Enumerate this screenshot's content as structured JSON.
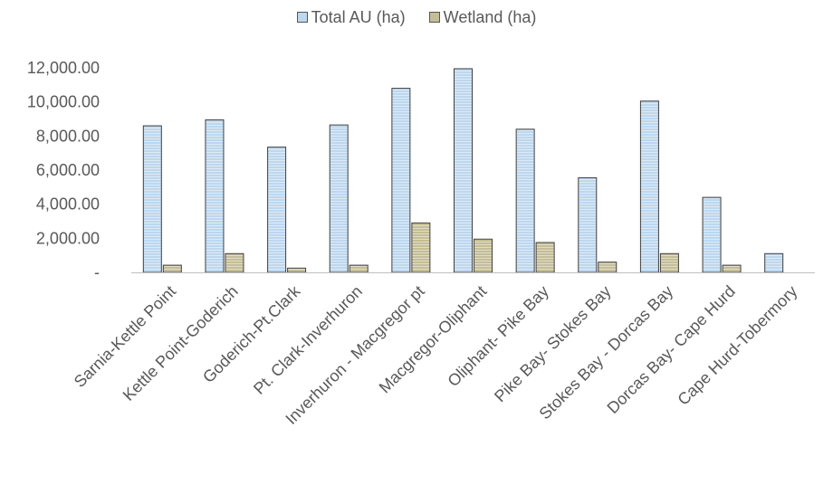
{
  "chart_data": {
    "type": "bar",
    "categories": [
      "Sarnia-Kettle Point",
      "Kettle Point-Goderich",
      "Goderich-Pt.Clark",
      "Pt. Clark-Inverhuron",
      "Inverhuron - Macgregor pt",
      "Macgregor-Oliphant",
      "Oliphant- Pike Bay",
      "Pike Bay- Stokes Bay",
      "Stokes Bay - Dorcas Bay",
      "Dorcas Bay- Cape Hurd",
      "Cape Hurd-Tobermory"
    ],
    "series": [
      {
        "name": "Total AU (ha)",
        "color": "#bdd7ee",
        "values": [
          8600,
          8950,
          7350,
          8650,
          10800,
          11950,
          8400,
          5550,
          10050,
          4400,
          1100
        ]
      },
      {
        "name": "Wetland (ha)",
        "color": "#c4bd97",
        "values": [
          420,
          1100,
          250,
          420,
          2900,
          1950,
          1750,
          600,
          1100,
          420,
          0
        ]
      }
    ],
    "yticks": [
      "-",
      "2,000.00",
      "4,000.00",
      "6,000.00",
      "8,000.00",
      "10,000.00",
      "12,000.00"
    ],
    "ylim": [
      0,
      12000
    ],
    "grid": false,
    "legend_position": "top-center"
  }
}
